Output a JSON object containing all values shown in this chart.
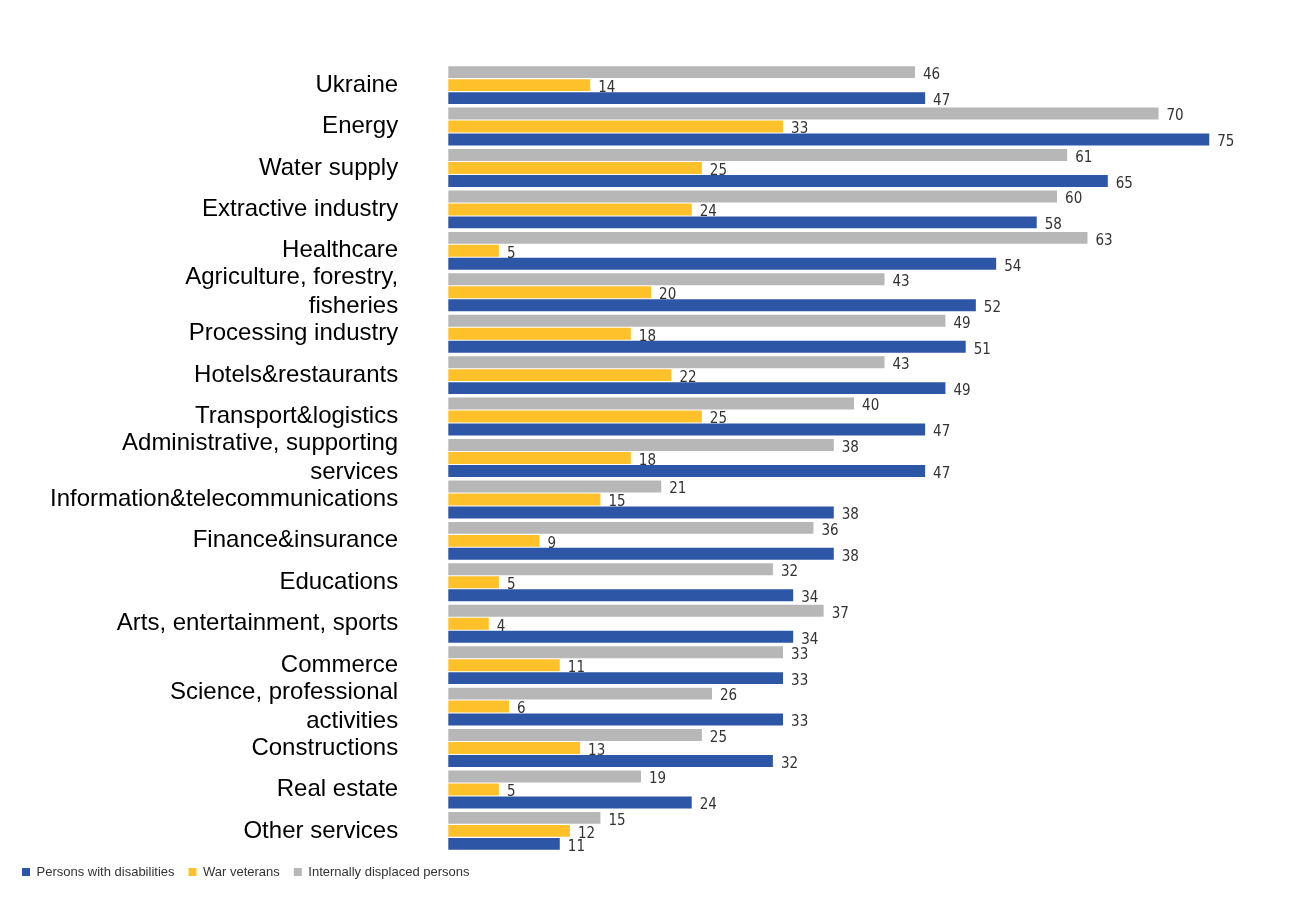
{
  "chart_data": {
    "type": "bar",
    "orientation": "horizontal",
    "categories": [
      "Ukraine",
      "Energy",
      "Water supply",
      "Extractive industry",
      "Healthcare",
      "Agriculture, forestry, fisheries",
      "Processing industry",
      "Hotels&restaurants",
      "Transport&logistics",
      "Administrative, supporting services",
      "Information&telecommunications",
      "Finance&insurance",
      "Educations",
      "Arts, entertainment, sports",
      "Commerce",
      "Science, professional activities",
      "Constructions",
      "Real estate",
      "Other services"
    ],
    "series": [
      {
        "name": "Internally displaced persons",
        "color": "#b7b7b7",
        "values": [
          46,
          70,
          61,
          60,
          63,
          43,
          49,
          43,
          40,
          38,
          21,
          36,
          32,
          37,
          33,
          26,
          25,
          19,
          15
        ]
      },
      {
        "name": "War veterans",
        "color": "#ffc12a",
        "values": [
          14,
          33,
          25,
          24,
          5,
          20,
          18,
          22,
          25,
          18,
          15,
          9,
          5,
          4,
          11,
          6,
          13,
          5,
          12
        ]
      },
      {
        "name": "Persons with disabilities",
        "color": "#2e56a6",
        "values": [
          47,
          75,
          65,
          58,
          54,
          52,
          51,
          49,
          47,
          47,
          38,
          38,
          34,
          34,
          33,
          33,
          32,
          24,
          11
        ]
      }
    ],
    "data_labels": true,
    "legend": "bottom left"
  }
}
